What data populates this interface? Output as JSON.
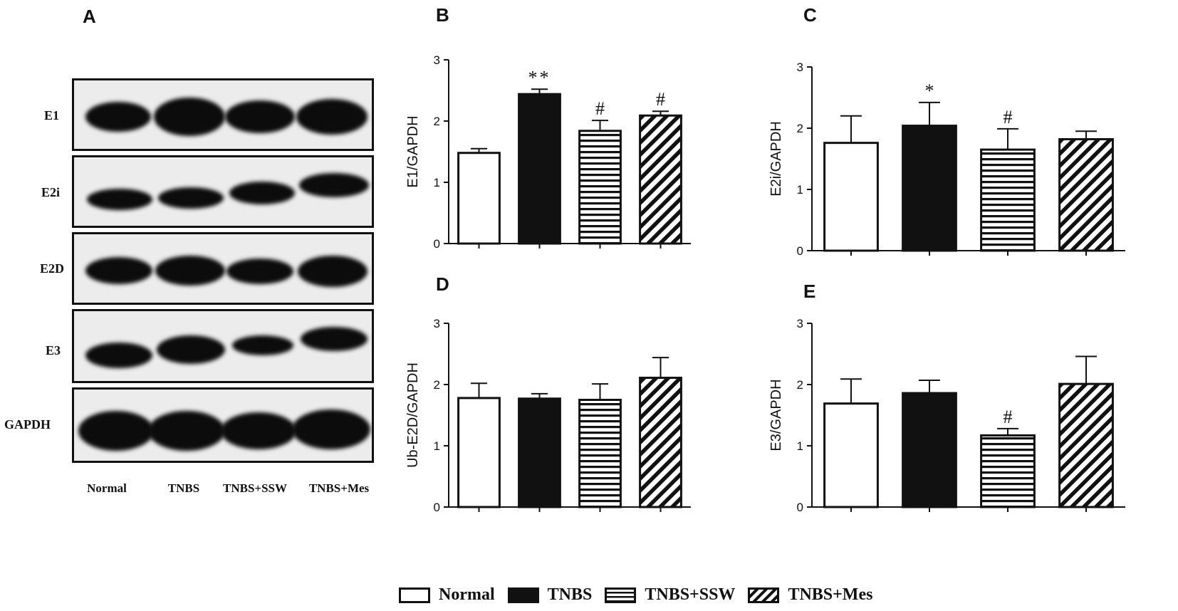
{
  "panel_a": {
    "letter": "A",
    "rows": [
      "E1",
      "E2i",
      "E2D",
      "E3",
      "GAPDH"
    ],
    "lanes": [
      "Normal",
      "TNBS",
      "TNBS+SSW",
      "TNBS+Mes"
    ]
  },
  "legend": {
    "items": [
      {
        "label": "Normal",
        "pattern": "white"
      },
      {
        "label": "TNBS",
        "pattern": "black"
      },
      {
        "label": "TNBS+SSW",
        "pattern": "horizontal"
      },
      {
        "label": "TNBS+Mes",
        "pattern": "diagonal"
      }
    ]
  },
  "chart_data": [
    {
      "panel": "B",
      "type": "bar",
      "ylabel": "E1/GAPDH",
      "ylim": [
        0,
        3
      ],
      "yticks": [
        0,
        1,
        2,
        3
      ],
      "categories": [
        "Normal",
        "TNBS",
        "TNBS+SSW",
        "TNBS+Mes"
      ],
      "values": [
        1.48,
        2.44,
        1.84,
        2.09
      ],
      "errors": [
        0.07,
        0.08,
        0.17,
        0.07
      ],
      "annotations": [
        "",
        "**",
        "#",
        "#"
      ]
    },
    {
      "panel": "C",
      "type": "bar",
      "ylabel": "E2i/GAPDH",
      "ylim": [
        0,
        3
      ],
      "yticks": [
        0,
        1,
        2,
        3
      ],
      "categories": [
        "Normal",
        "TNBS",
        "TNBS+SSW",
        "TNBS+Mes"
      ],
      "values": [
        1.76,
        2.04,
        1.65,
        1.82
      ],
      "errors": [
        0.44,
        0.38,
        0.34,
        0.13
      ],
      "annotations": [
        "",
        "*",
        "#",
        ""
      ]
    },
    {
      "panel": "D",
      "type": "bar",
      "ylabel": "Ub-E2D/GAPDH",
      "ylim": [
        0,
        3
      ],
      "yticks": [
        0,
        1,
        2,
        3
      ],
      "categories": [
        "Normal",
        "TNBS",
        "TNBS+SSW",
        "TNBS+Mes"
      ],
      "values": [
        1.78,
        1.77,
        1.75,
        2.11
      ],
      "errors": [
        0.24,
        0.08,
        0.26,
        0.33
      ],
      "annotations": [
        "",
        "",
        "",
        ""
      ]
    },
    {
      "panel": "E",
      "type": "bar",
      "ylabel": "E3/GAPDH",
      "ylim": [
        0,
        3
      ],
      "yticks": [
        0,
        1,
        2,
        3
      ],
      "categories": [
        "Normal",
        "TNBS",
        "TNBS+SSW",
        "TNBS+Mes"
      ],
      "values": [
        1.69,
        1.86,
        1.17,
        2.01
      ],
      "errors": [
        0.4,
        0.21,
        0.11,
        0.45
      ],
      "annotations": [
        "",
        "",
        "#",
        ""
      ]
    }
  ]
}
